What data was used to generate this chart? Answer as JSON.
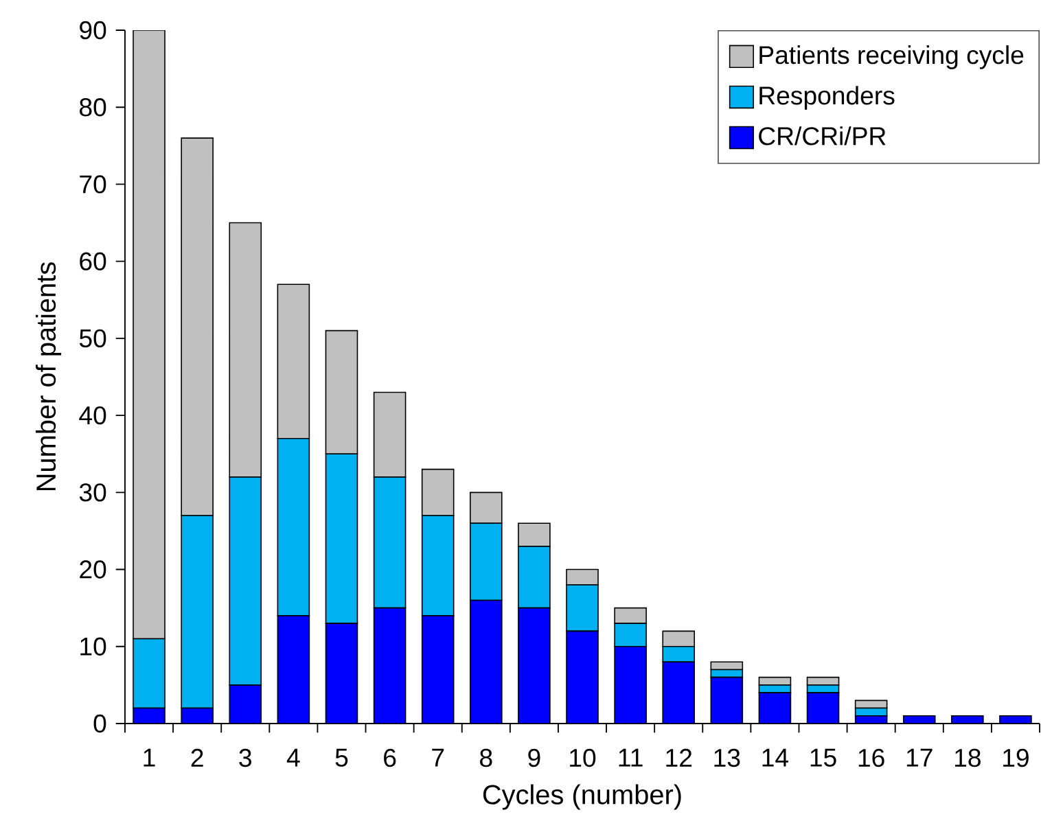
{
  "chart_data": {
    "type": "bar",
    "stacked": true,
    "xlabel": "Cycles (number)",
    "ylabel": "Number of patients",
    "categories": [
      "1",
      "2",
      "3",
      "4",
      "5",
      "6",
      "7",
      "8",
      "9",
      "10",
      "11",
      "12",
      "13",
      "14",
      "15",
      "16",
      "17",
      "18",
      "19"
    ],
    "series": [
      {
        "name": "CR/CRi/PR",
        "color": "#0000ff",
        "values": [
          2,
          2,
          5,
          14,
          13,
          15,
          14,
          16,
          15,
          12,
          10,
          8,
          6,
          4,
          4,
          1,
          1,
          1,
          1
        ]
      },
      {
        "name": "Responders",
        "color": "#00b0f0",
        "values": [
          9,
          25,
          27,
          23,
          22,
          17,
          13,
          10,
          8,
          6,
          3,
          2,
          1,
          1,
          1,
          1,
          0,
          0,
          0
        ]
      },
      {
        "name": "Patients receiving cycle",
        "color": "#c0c0c0",
        "values": [
          79,
          49,
          33,
          20,
          16,
          11,
          6,
          4,
          3,
          2,
          2,
          2,
          1,
          1,
          1,
          1,
          0,
          0,
          0
        ]
      }
    ],
    "ylim": [
      0,
      90
    ],
    "yticks": [
      0,
      10,
      20,
      30,
      40,
      50,
      60,
      70,
      80,
      90
    ],
    "grid": false,
    "legend": "top right"
  }
}
